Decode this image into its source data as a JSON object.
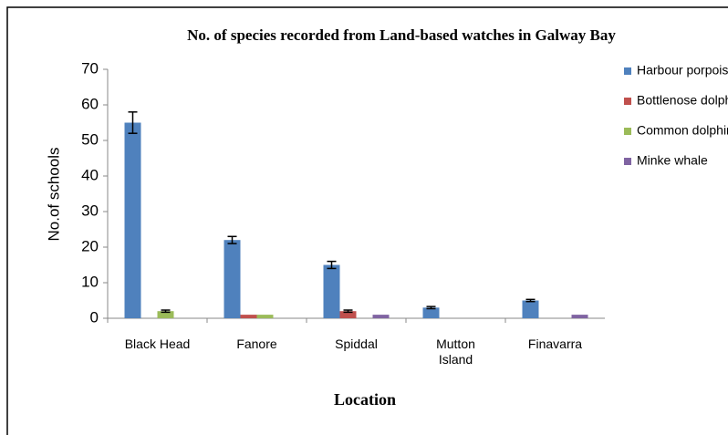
{
  "chart_data": {
    "type": "bar",
    "title": "No. of species recorded from Land-based watches in Galway Bay",
    "x_label": "Location",
    "y_label": "No.of schools",
    "categories": [
      "Black Head",
      "Fanore",
      "Spiddal",
      "Mutton Island",
      "Finavarra"
    ],
    "series": [
      {
        "name": "Harbour porpoise",
        "color": "#4f81bd",
        "values": [
          55,
          22,
          15,
          3,
          5
        ],
        "errors": [
          3,
          1,
          1,
          0.3,
          0.3
        ]
      },
      {
        "name": "Bottlenose dolphin",
        "color": "#c0504d",
        "values": [
          0,
          1,
          2,
          0,
          0
        ],
        "errors": [
          null,
          null,
          0.3,
          null,
          null
        ]
      },
      {
        "name": "Common dolphin",
        "color": "#9bbb59",
        "values": [
          2,
          1,
          0,
          0,
          0
        ],
        "errors": [
          0.3,
          null,
          null,
          null,
          null
        ]
      },
      {
        "name": "Minke whale",
        "color": "#8064a2",
        "values": [
          0,
          0,
          1,
          0,
          1
        ],
        "errors": [
          null,
          null,
          null,
          null,
          null
        ]
      }
    ],
    "ylim": [
      0,
      70
    ],
    "yticks": [
      0,
      10,
      20,
      30,
      40,
      50,
      60,
      70
    ],
    "legend": "right"
  }
}
